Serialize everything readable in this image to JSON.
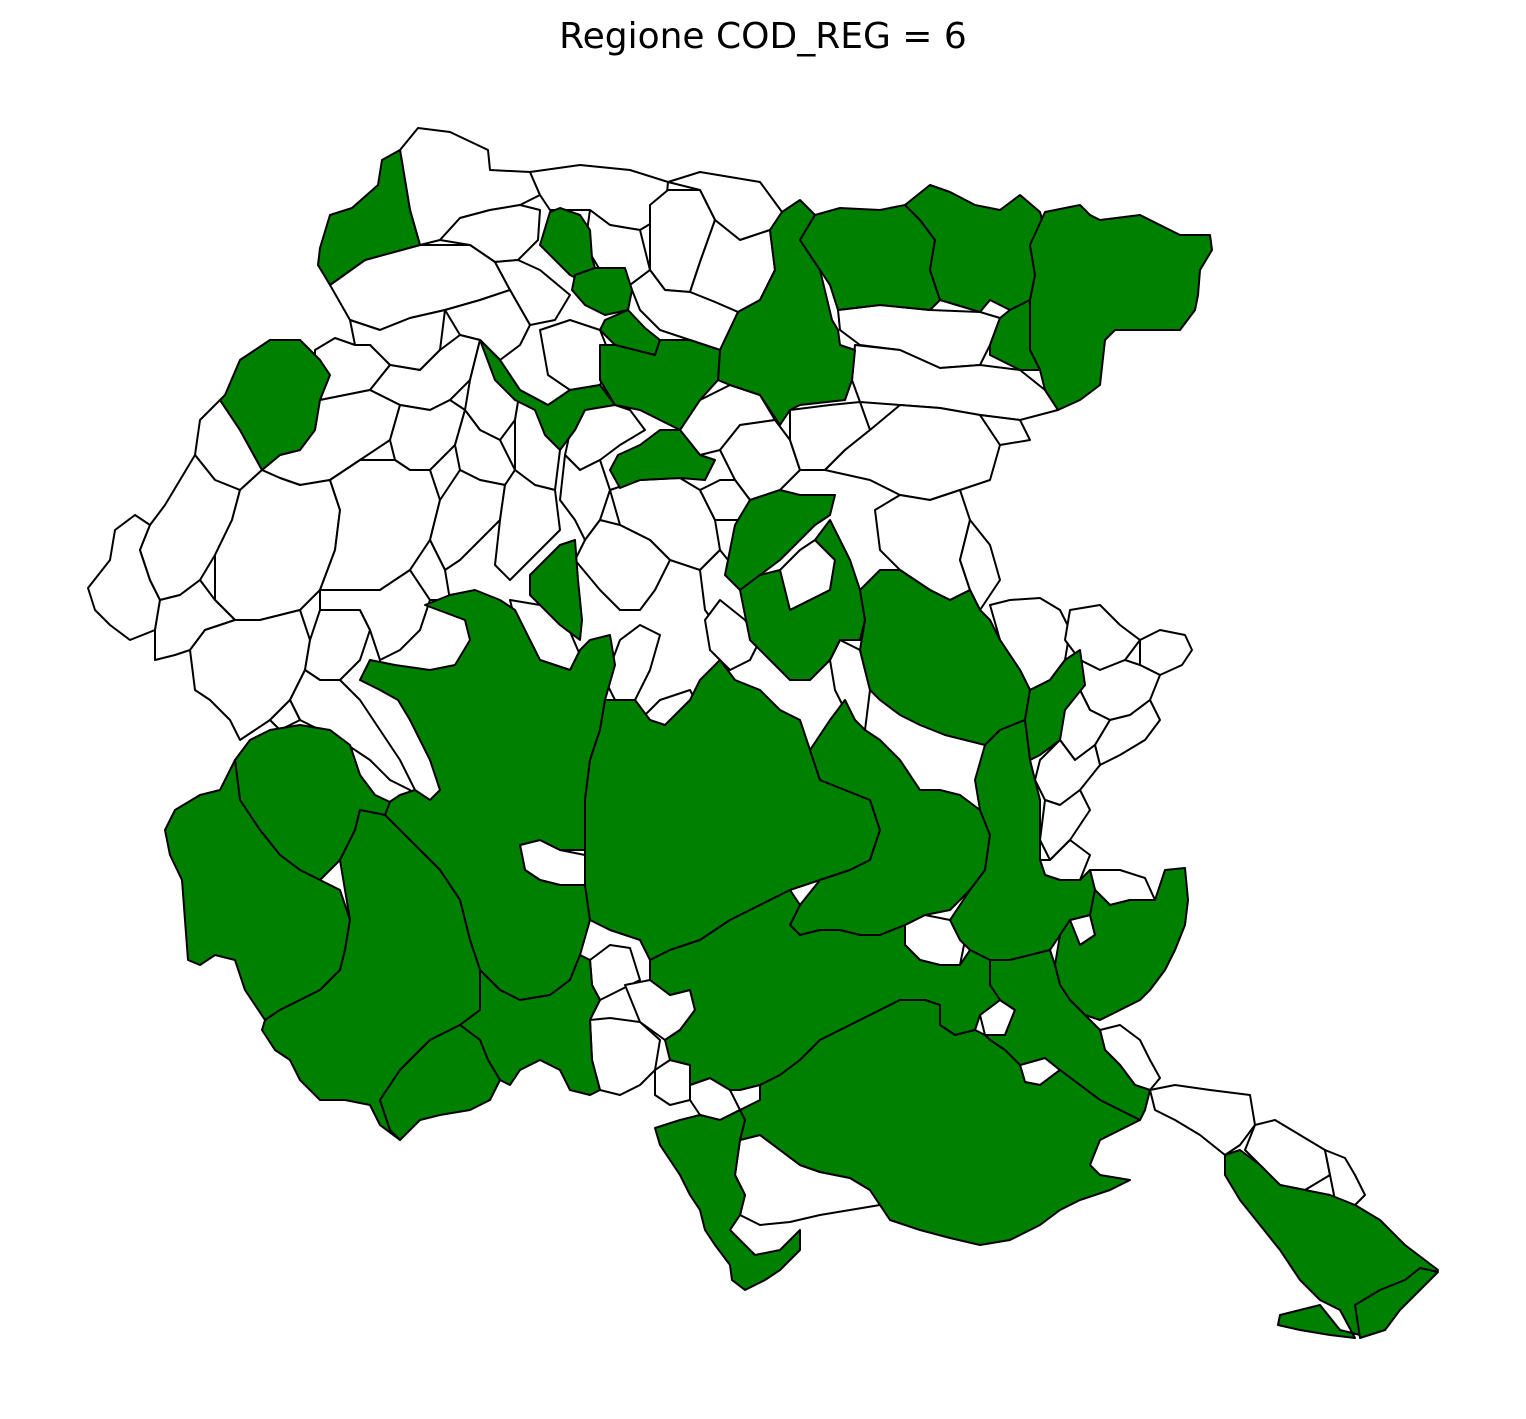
{
  "map": {
    "title": "Regione COD_REG = 6",
    "region_code": 6,
    "colors": {
      "selected": "#008000",
      "unselected": "#ffffff",
      "border": "#000000",
      "background": "#ffffff"
    },
    "legend": null
  }
}
